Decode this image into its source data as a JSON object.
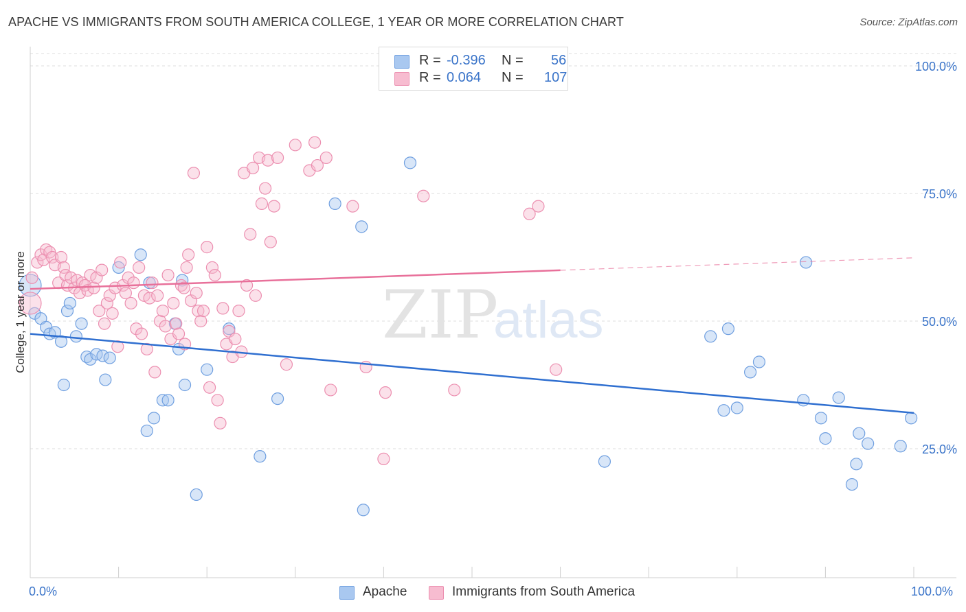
{
  "title": "APACHE VS IMMIGRANTS FROM SOUTH AMERICA COLLEGE, 1 YEAR OR MORE CORRELATION CHART",
  "source": "Source: ZipAtlas.com",
  "watermark": {
    "zip": "ZIP",
    "atlas": "atlas"
  },
  "legend": {
    "rows": [
      {
        "r_label": "R =",
        "r_value": "-0.396",
        "n_label": "N =",
        "n_value": "56",
        "color": "#a9c8f0",
        "border": "#6f9fe0"
      },
      {
        "r_label": "R =",
        "r_value": "0.064",
        "n_label": "N =",
        "n_value": "107",
        "color": "#f7bcd0",
        "border": "#ec8fb0"
      }
    ]
  },
  "bottom_legend": [
    {
      "label": "Apache",
      "color": "#a9c8f0",
      "border": "#6f9fe0"
    },
    {
      "label": "Immigrants from South America",
      "color": "#f7bcd0",
      "border": "#ec8fb0"
    }
  ],
  "chart_data": {
    "type": "scatter",
    "ylabel": "College, 1 year or more",
    "xlim": [
      0,
      100
    ],
    "ylim": [
      0,
      100
    ],
    "x_tick_labels": [
      "0.0%",
      "100.0%"
    ],
    "y_ticks": [
      {
        "value": 100,
        "label": "100.0%"
      },
      {
        "value": 75,
        "label": "75.0%"
      },
      {
        "value": 50,
        "label": "50.0%"
      },
      {
        "value": 25,
        "label": "25.0%"
      }
    ],
    "grid": true,
    "series": [
      {
        "name": "Apache",
        "color": "#6f9fe0",
        "fill": "#a9c8f0",
        "line_color": "#2f6fd0",
        "trend": {
          "x": [
            0,
            100
          ],
          "y": [
            47.5,
            32.0
          ],
          "dashed_from": null
        },
        "points": [
          [
            0.0,
            57.0
          ],
          [
            0.5,
            51.5
          ],
          [
            1.2,
            50.5
          ],
          [
            1.8,
            48.8
          ],
          [
            2.2,
            47.5
          ],
          [
            2.8,
            47.8
          ],
          [
            3.5,
            46.0
          ],
          [
            4.2,
            52.0
          ],
          [
            3.8,
            37.5
          ],
          [
            4.5,
            53.5
          ],
          [
            5.2,
            47.0
          ],
          [
            5.8,
            49.5
          ],
          [
            6.4,
            43.0
          ],
          [
            6.8,
            42.5
          ],
          [
            7.5,
            43.5
          ],
          [
            8.2,
            43.2
          ],
          [
            8.5,
            38.5
          ],
          [
            9.0,
            42.8
          ],
          [
            10.0,
            60.5
          ],
          [
            12.5,
            63.0
          ],
          [
            13.5,
            57.5
          ],
          [
            13.2,
            28.5
          ],
          [
            14.0,
            31.0
          ],
          [
            15.0,
            34.5
          ],
          [
            15.6,
            34.5
          ],
          [
            16.4,
            49.5
          ],
          [
            16.8,
            44.5
          ],
          [
            17.2,
            58.0
          ],
          [
            17.5,
            37.5
          ],
          [
            18.8,
            16.0
          ],
          [
            20.0,
            40.5
          ],
          [
            22.5,
            48.5
          ],
          [
            26.0,
            23.5
          ],
          [
            28.0,
            34.8
          ],
          [
            34.5,
            73.0
          ],
          [
            37.5,
            68.5
          ],
          [
            37.7,
            13.0
          ],
          [
            43.0,
            81.0
          ],
          [
            65.0,
            22.5
          ],
          [
            77.0,
            47.0
          ],
          [
            78.5,
            32.5
          ],
          [
            79.0,
            48.5
          ],
          [
            80.0,
            33.0
          ],
          [
            81.5,
            40.0
          ],
          [
            82.5,
            42.0
          ],
          [
            87.5,
            34.5
          ],
          [
            87.8,
            61.5
          ],
          [
            89.5,
            31.0
          ],
          [
            90.0,
            27.0
          ],
          [
            91.5,
            35.0
          ],
          [
            93.5,
            22.0
          ],
          [
            93.0,
            18.0
          ],
          [
            93.8,
            28.0
          ],
          [
            94.8,
            26.0
          ],
          [
            98.5,
            25.5
          ],
          [
            99.7,
            31.0
          ]
        ]
      },
      {
        "name": "Immigrants from South America",
        "color": "#ec8fb0",
        "fill": "#f7bcd0",
        "line_color": "#e8709a",
        "trend": {
          "x": [
            0,
            100
          ],
          "y": [
            56.3,
            62.4
          ],
          "dashed_from": 60
        },
        "points": [
          [
            0.0,
            53.5
          ],
          [
            0.2,
            58.5
          ],
          [
            0.8,
            61.5
          ],
          [
            1.2,
            63.0
          ],
          [
            1.5,
            62.0
          ],
          [
            1.8,
            64.0
          ],
          [
            2.2,
            63.5
          ],
          [
            2.5,
            62.5
          ],
          [
            2.8,
            61.0
          ],
          [
            3.2,
            57.5
          ],
          [
            3.5,
            62.5
          ],
          [
            3.8,
            60.5
          ],
          [
            4.0,
            59.0
          ],
          [
            4.2,
            57.0
          ],
          [
            4.6,
            58.5
          ],
          [
            5.0,
            56.5
          ],
          [
            5.3,
            58.0
          ],
          [
            5.6,
            55.5
          ],
          [
            5.9,
            57.5
          ],
          [
            6.2,
            57.0
          ],
          [
            6.5,
            56.0
          ],
          [
            6.8,
            59.0
          ],
          [
            7.2,
            56.5
          ],
          [
            7.5,
            58.5
          ],
          [
            7.8,
            52.0
          ],
          [
            8.1,
            60.0
          ],
          [
            8.4,
            49.5
          ],
          [
            8.7,
            53.5
          ],
          [
            9.0,
            55.0
          ],
          [
            9.3,
            51.5
          ],
          [
            9.6,
            56.5
          ],
          [
            9.9,
            45.0
          ],
          [
            10.2,
            61.5
          ],
          [
            10.5,
            57.0
          ],
          [
            10.8,
            55.5
          ],
          [
            11.1,
            58.5
          ],
          [
            11.4,
            53.5
          ],
          [
            11.7,
            57.5
          ],
          [
            12.0,
            48.5
          ],
          [
            12.3,
            60.5
          ],
          [
            12.6,
            47.5
          ],
          [
            12.9,
            55.0
          ],
          [
            13.2,
            44.5
          ],
          [
            13.5,
            54.5
          ],
          [
            13.8,
            57.5
          ],
          [
            14.1,
            40.0
          ],
          [
            14.4,
            55.0
          ],
          [
            14.7,
            50.0
          ],
          [
            15.0,
            52.0
          ],
          [
            15.3,
            49.0
          ],
          [
            15.6,
            59.0
          ],
          [
            15.9,
            46.5
          ],
          [
            16.2,
            53.5
          ],
          [
            16.5,
            49.5
          ],
          [
            16.8,
            47.5
          ],
          [
            17.1,
            57.0
          ],
          [
            17.4,
            56.5
          ],
          [
            17.7,
            60.5
          ],
          [
            17.9,
            63.0
          ],
          [
            18.2,
            54.0
          ],
          [
            18.5,
            79.0
          ],
          [
            18.8,
            55.5
          ],
          [
            19.0,
            52.0
          ],
          [
            19.3,
            50.0
          ],
          [
            19.6,
            52.0
          ],
          [
            20.0,
            64.5
          ],
          [
            20.3,
            37.0
          ],
          [
            20.6,
            60.5
          ],
          [
            20.9,
            59.0
          ],
          [
            21.2,
            34.5
          ],
          [
            21.5,
            30.0
          ],
          [
            21.8,
            52.5
          ],
          [
            22.2,
            45.5
          ],
          [
            22.5,
            48.0
          ],
          [
            22.9,
            43.0
          ],
          [
            23.2,
            46.5
          ],
          [
            23.6,
            52.0
          ],
          [
            23.9,
            44.0
          ],
          [
            24.2,
            79.0
          ],
          [
            24.5,
            57.0
          ],
          [
            24.9,
            67.0
          ],
          [
            25.2,
            80.0
          ],
          [
            25.5,
            55.0
          ],
          [
            25.9,
            82.0
          ],
          [
            26.2,
            73.0
          ],
          [
            26.6,
            76.0
          ],
          [
            26.9,
            81.5
          ],
          [
            27.2,
            65.5
          ],
          [
            27.6,
            72.5
          ],
          [
            28.0,
            82.0
          ],
          [
            29.0,
            41.5
          ],
          [
            30.0,
            84.5
          ],
          [
            31.6,
            79.5
          ],
          [
            32.2,
            85.0
          ],
          [
            32.5,
            80.5
          ],
          [
            33.5,
            82.0
          ],
          [
            34.0,
            36.5
          ],
          [
            36.5,
            72.5
          ],
          [
            38.0,
            41.0
          ],
          [
            40.0,
            23.0
          ],
          [
            40.2,
            36.0
          ],
          [
            44.5,
            74.5
          ],
          [
            48.0,
            36.5
          ],
          [
            56.5,
            71.0
          ],
          [
            57.5,
            72.5
          ],
          [
            59.5,
            40.5
          ],
          [
            17.5,
            45.5
          ]
        ]
      }
    ]
  }
}
